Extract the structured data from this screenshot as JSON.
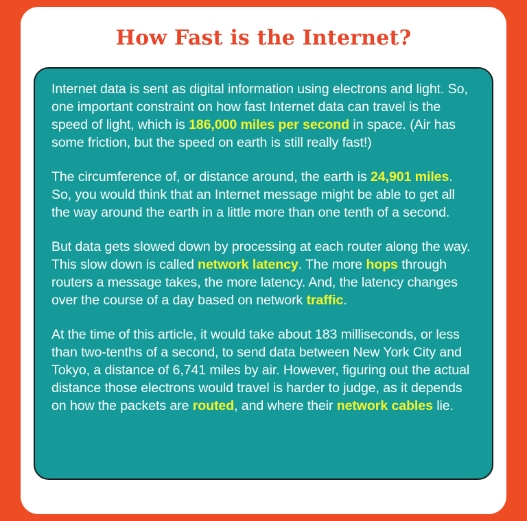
{
  "title": "How Fast is the Internet?",
  "colors": {
    "background": "#ee4c25",
    "title": "#e8462a",
    "panel": "#159a99",
    "highlight": "#f5f529"
  },
  "paragraphs": [
    {
      "t1": "Internet data is sent as digital information using electrons and light. So, one important constraint on how fast Internet data can travel is the speed of light, which is ",
      "h1": "186,000 miles per second",
      "t2": " in space. (Air has some friction, but the speed on earth is still really fast!)"
    },
    {
      "t1": "The circumference of, or distance around, the earth is ",
      "h1": "24,901 miles",
      "t2": ". So, you would think that an Internet message might be able to get all the way around the earth in a little more than one tenth of a second."
    },
    {
      "t1": "But data gets slowed down by processing at each router along the way. This slow down is called ",
      "h1": "network latency",
      "t2": ". The more ",
      "h2": "hops",
      "t3": " through routers a message takes, the more latency. And, the latency changes over the course of a day based on network ",
      "h3": "traffic",
      "t4": "."
    },
    {
      "t1": "At the time of this article, it would take about 183 milliseconds, or less than two-tenths of a second, to send data between New York City and Tokyo, a distance of 6,741 miles by air. However, figuring out the actual distance those electrons would travel is harder to judge, as it depends on how the packets are ",
      "h1": "routed",
      "t2": ", and where their ",
      "h2": "network cables",
      "t3": " lie."
    }
  ]
}
